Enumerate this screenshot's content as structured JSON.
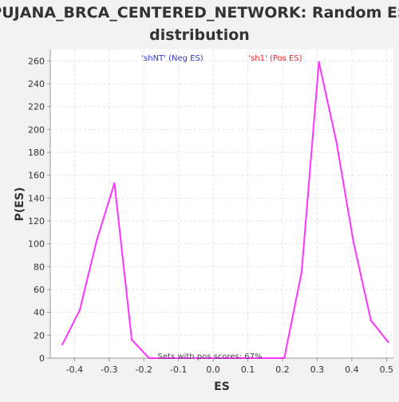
{
  "chart_data": {
    "type": "line",
    "title_lines": [
      "PUJANA_BRCA_CENTERED_NETWORK: Random ES",
      "distribution"
    ],
    "xlabel": "ES",
    "ylabel": "P(ES)",
    "xlim": [
      -0.47,
      0.52
    ],
    "ylim": [
      0,
      270
    ],
    "x_ticks": [
      -0.4,
      -0.3,
      -0.2,
      -0.1,
      0.0,
      0.1,
      0.2,
      0.3,
      0.4,
      0.5
    ],
    "x_tick_labels": [
      "-0.4",
      "-0.3",
      "-0.2",
      "-0.1",
      "0.0",
      "0.1",
      "0.2",
      "0.3",
      "0.4",
      "0.5"
    ],
    "y_ticks": [
      0,
      20,
      40,
      60,
      80,
      100,
      120,
      140,
      160,
      180,
      200,
      220,
      240,
      260
    ],
    "y_tick_labels": [
      "0",
      "20",
      "40",
      "60",
      "80",
      "100",
      "120",
      "140",
      "160",
      "180",
      "200",
      "220",
      "240",
      "260"
    ],
    "grid": true,
    "series": [
      {
        "color": "#ff33ff",
        "x": [
          -0.435,
          -0.385,
          -0.335,
          -0.285,
          -0.235,
          -0.185,
          -0.135,
          -0.085,
          -0.035,
          0.015,
          0.065,
          0.115,
          0.165,
          0.205,
          0.255,
          0.305,
          0.355,
          0.405,
          0.455,
          0.505
        ],
        "values": [
          12,
          42,
          104,
          153,
          16,
          0,
          0,
          0,
          0,
          0,
          0,
          0,
          0,
          0,
          75,
          259,
          190,
          101,
          33,
          14
        ]
      }
    ],
    "annotations": {
      "neg_label": {
        "text": "'shNT' (Neg ES)",
        "color": "#3333cc"
      },
      "pos_label": {
        "text": "'sh1' (Pos ES)",
        "color": "#ee2222"
      },
      "footer": {
        "text": "Sets with pos scores: 67%",
        "color": "#444444"
      }
    },
    "colors": {
      "background": "#f2f2f2",
      "plot_background": "#ffffff",
      "grid": "#e3e3e3",
      "axis": "#999999",
      "text": "#333333"
    }
  }
}
